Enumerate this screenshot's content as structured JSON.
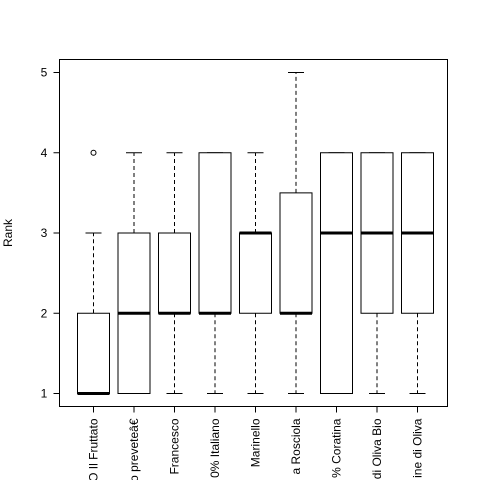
{
  "chart_data": {
    "type": "box",
    "title": "",
    "xlabel": "",
    "ylabel": "Rank",
    "ylim": [
      1,
      5
    ],
    "yticks": [
      1,
      2,
      3,
      4,
      5
    ],
    "grid": false,
    "legend": "none",
    "boxes": [
      {
        "label": "O Il Fruttato",
        "whisker_low": 1,
        "q1": 1,
        "median": 1,
        "q3": 2,
        "whisker_high": 3,
        "outliers": [
          4
        ]
      },
      {
        "label": "o preveteâ€",
        "whisker_low": 1,
        "q1": 1,
        "median": 2,
        "q3": 3,
        "whisker_high": 4,
        "outliers": []
      },
      {
        "label": "Francesco",
        "whisker_low": 1,
        "q1": 2,
        "median": 2,
        "q3": 3,
        "whisker_high": 4,
        "outliers": []
      },
      {
        "label": "0% Italiano",
        "whisker_low": 1,
        "q1": 2,
        "median": 2,
        "q3": 4,
        "whisker_high": 4,
        "outliers": []
      },
      {
        "label": "Marinello",
        "whisker_low": 1,
        "q1": 2,
        "median": 3,
        "q3": 3,
        "whisker_high": 4,
        "outliers": []
      },
      {
        "label": "a Rosciola",
        "whisker_low": 1,
        "q1": 2,
        "median": 2,
        "q3": 3.5,
        "whisker_high": 5,
        "outliers": []
      },
      {
        "label": "% Coratina",
        "whisker_low": 1,
        "q1": 1,
        "median": 3,
        "q3": 4,
        "whisker_high": 4,
        "outliers": []
      },
      {
        "label": "di Oliva Bio",
        "whisker_low": 1,
        "q1": 2,
        "median": 3,
        "q3": 4,
        "whisker_high": 4,
        "outliers": []
      },
      {
        "label": "ine di Oliva",
        "whisker_low": 1,
        "q1": 2,
        "median": 3,
        "q3": 4,
        "whisker_high": 4,
        "outliers": []
      }
    ]
  }
}
